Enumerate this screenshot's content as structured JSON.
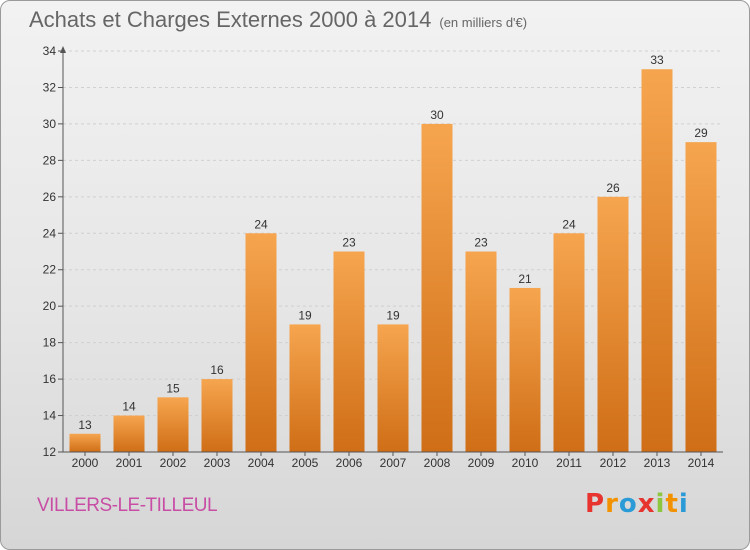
{
  "header": {
    "title": "Achats et Charges Externes 2000 à 2014",
    "unit": "(en milliers d'€)"
  },
  "footer": {
    "location": "VILLERS-LE-TILLEUL",
    "brand": "Proxiti"
  },
  "colors": {
    "bar_light": "#f6a54f",
    "bar_dark": "#cf6e16",
    "location_text": "#c84ea5",
    "brand_letters": [
      "#e7342f",
      "#f39200",
      "#2a9bd6",
      "#e7342f",
      "#8dc63f",
      "#f39200",
      "#2a9bd6"
    ]
  },
  "chart_data": {
    "type": "bar",
    "title": "Achats et Charges Externes 2000 à 2014",
    "subtitle": "(en milliers d'€)",
    "xlabel": "",
    "ylabel": "",
    "categories": [
      "2000",
      "2001",
      "2002",
      "2003",
      "2004",
      "2005",
      "2006",
      "2007",
      "2008",
      "2009",
      "2010",
      "2011",
      "2012",
      "2013",
      "2014"
    ],
    "values": [
      13,
      14,
      15,
      16,
      24,
      19,
      23,
      19,
      30,
      23,
      21,
      24,
      26,
      33,
      29
    ],
    "ylim": [
      12,
      34
    ],
    "yticks": [
      12,
      14,
      16,
      18,
      20,
      22,
      24,
      26,
      28,
      30,
      32,
      34
    ],
    "grid": true,
    "data_labels": true
  }
}
